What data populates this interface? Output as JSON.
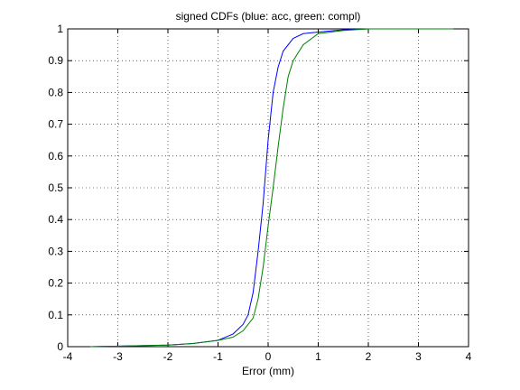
{
  "chart_data": {
    "type": "line",
    "title": "signed CDFs (blue: acc, green: compl)",
    "x_label": "Error (mm)",
    "xlim": [
      -4,
      4
    ],
    "xticks": [
      -4,
      -3,
      -2,
      -1,
      0,
      1,
      2,
      3,
      4
    ],
    "ylim": [
      0,
      1
    ],
    "yticks": [
      0,
      0.1,
      0.2,
      0.3,
      0.4,
      0.5,
      0.6,
      0.7,
      0.8,
      0.9,
      1
    ],
    "grid": true,
    "series": [
      {
        "color": "#0000ff",
        "x": [
          -3.55,
          -2,
          -1.5,
          -1,
          -0.7,
          -0.5,
          -0.4,
          -0.3,
          -0.2,
          -0.1,
          -0.05,
          0,
          0.1,
          0.2,
          0.3,
          0.5,
          0.7,
          1,
          1.5,
          2,
          3.7
        ],
        "values": [
          0,
          0.005,
          0.01,
          0.02,
          0.04,
          0.07,
          0.1,
          0.17,
          0.3,
          0.45,
          0.55,
          0.65,
          0.8,
          0.88,
          0.93,
          0.97,
          0.985,
          0.99,
          0.997,
          1,
          1
        ]
      },
      {
        "color": "#008000",
        "x": [
          -3.55,
          -2,
          -1.5,
          -1,
          -0.7,
          -0.5,
          -0.3,
          -0.2,
          -0.1,
          0,
          0.1,
          0.2,
          0.3,
          0.4,
          0.5,
          0.7,
          1,
          1.5,
          2,
          3.7
        ],
        "values": [
          0,
          0.005,
          0.01,
          0.02,
          0.03,
          0.05,
          0.09,
          0.15,
          0.25,
          0.38,
          0.5,
          0.63,
          0.75,
          0.85,
          0.9,
          0.95,
          0.985,
          0.995,
          1,
          1
        ]
      }
    ]
  }
}
